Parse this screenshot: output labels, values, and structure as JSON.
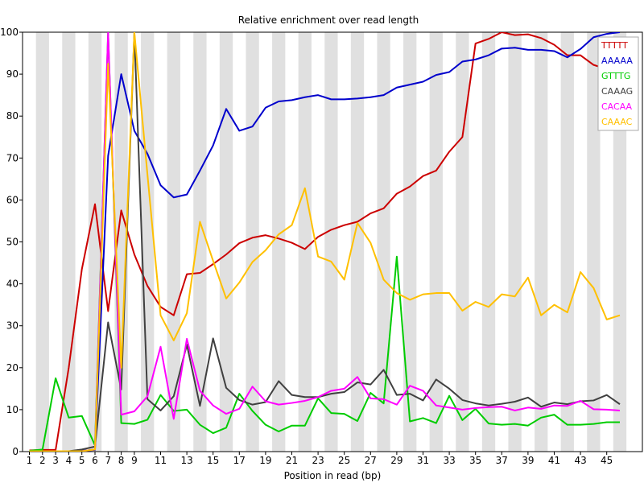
{
  "chart_data": {
    "type": "line",
    "title": "Relative enrichment over read length",
    "xlabel": "Position in read (bp)",
    "ylabel": "",
    "xlim": [
      1,
      47
    ],
    "ylim": [
      0,
      100
    ],
    "grid": "alternating vertical stripes per position",
    "legend": "top-right",
    "x_tick_labels": [
      "1",
      "2",
      "3",
      "4",
      "5",
      "6",
      "7",
      "8",
      "9",
      "11",
      "13",
      "15",
      "17",
      "19",
      "21",
      "23",
      "25",
      "27",
      "29",
      "31",
      "33",
      "35",
      "37",
      "39",
      "41",
      "43",
      "45"
    ],
    "y_tick_labels": [
      "0",
      "10",
      "20",
      "30",
      "40",
      "50",
      "60",
      "70",
      "80",
      "90",
      "100"
    ],
    "x": [
      1,
      2,
      3,
      4,
      5,
      6,
      7,
      8,
      9,
      10,
      11,
      12,
      13,
      14,
      15,
      16,
      17,
      18,
      19,
      20,
      21,
      22,
      23,
      24,
      25,
      26,
      27,
      28,
      29,
      30,
      31,
      32,
      33,
      34,
      35,
      36,
      37,
      38,
      39,
      40,
      41,
      42,
      43,
      44,
      45,
      46
    ],
    "series": [
      {
        "name": "TTTTT",
        "color": "#cc0000",
        "values": [
          0.3,
          0.4,
          0.4,
          20,
          43.5,
          59,
          33.5,
          57.5,
          47,
          39.5,
          34.5,
          32.5,
          42.3,
          42.6,
          44.7,
          47,
          49.7,
          51,
          51.6,
          50.8,
          49.8,
          48.3,
          51.2,
          52.9,
          54,
          54.8,
          56.8,
          58,
          61.5,
          63.2,
          65.7,
          67,
          71.5,
          75,
          97.3,
          98.4,
          100,
          99.3,
          99.5,
          98.6,
          97,
          94.5,
          94.5,
          92.2,
          91.2,
          90.5
        ]
      },
      {
        "name": "AAAAA",
        "color": "#0000cc",
        "values": [
          0,
          0,
          0,
          0,
          0.2,
          0.4,
          70.5,
          90,
          76.5,
          71,
          63.5,
          60.6,
          61.3,
          67,
          73,
          81.7,
          76.5,
          77.5,
          82,
          83.5,
          83.8,
          84.5,
          85,
          84,
          84,
          84.2,
          84.5,
          85,
          86.8,
          87.5,
          88.2,
          89.8,
          90.5,
          93,
          93.5,
          94.5,
          96.1,
          96.3,
          95.8,
          95.8,
          95.5,
          94,
          96,
          98.8,
          99.6,
          100
        ]
      },
      {
        "name": "GTTTG",
        "color": "#00cc00",
        "values": [
          0.2,
          0.5,
          17.5,
          8.1,
          8.5,
          1.5,
          100,
          6.8,
          6.6,
          7.6,
          13.5,
          9.7,
          10,
          6.4,
          4.4,
          5.7,
          13.8,
          9.7,
          6.4,
          4.8,
          6.2,
          6.2,
          12.7,
          9.2,
          9,
          7.3,
          14,
          11.5,
          46.5,
          7.2,
          8,
          6.8,
          13.3,
          7.5,
          10.2,
          6.7,
          6.4,
          6.6,
          6.2,
          8.1,
          8.8,
          6.4,
          6.4,
          6.6,
          7,
          7
        ]
      },
      {
        "name": "CAAAG",
        "color": "#404040",
        "values": [
          0.1,
          0.1,
          0.1,
          0.1,
          0.5,
          1.2,
          30.8,
          14.8,
          100,
          12.5,
          9.8,
          13.2,
          25.5,
          10.9,
          27,
          15.2,
          12.3,
          11.2,
          11.8,
          16.8,
          13.5,
          13,
          13,
          13.8,
          14.2,
          16.5,
          16,
          19.5,
          13.5,
          13.8,
          12.2,
          17.2,
          15,
          12.3,
          11.5,
          11,
          11.4,
          11.9,
          12.9,
          10.7,
          11.7,
          11.3,
          12,
          12.2,
          13.5,
          11.3
        ]
      },
      {
        "name": "CACAA",
        "color": "#ff00ff",
        "values": [
          0.1,
          0.1,
          0.1,
          0.1,
          0.1,
          0.5,
          100,
          8.8,
          9.6,
          13.2,
          25,
          7.8,
          26.9,
          14.5,
          11,
          9,
          10.2,
          15.5,
          12,
          11.2,
          11.6,
          12.1,
          13,
          14.5,
          15,
          17.8,
          12.7,
          12.5,
          11.2,
          15.7,
          14.5,
          11,
          10.5,
          10,
          10.4,
          10.6,
          10.7,
          9.8,
          10.5,
          10.2,
          11,
          10.9,
          12.1,
          10.1,
          10,
          9.8
        ]
      },
      {
        "name": "CAAAC",
        "color": "#ffc000",
        "values": [
          0.1,
          0.1,
          0.1,
          0.1,
          0.1,
          0.5,
          92.5,
          20,
          100,
          66,
          32.5,
          26.5,
          33,
          54.8,
          45.5,
          36.5,
          40.3,
          45.2,
          48,
          51.8,
          54,
          62.8,
          46.5,
          45.3,
          41,
          54.5,
          49.8,
          41,
          37.8,
          36.2,
          37.5,
          37.8,
          37.8,
          33.6,
          35.7,
          34.5,
          37.5,
          37,
          41.5,
          32.5,
          35,
          33.2,
          42.8,
          39,
          31.5,
          32.5
        ]
      }
    ]
  }
}
